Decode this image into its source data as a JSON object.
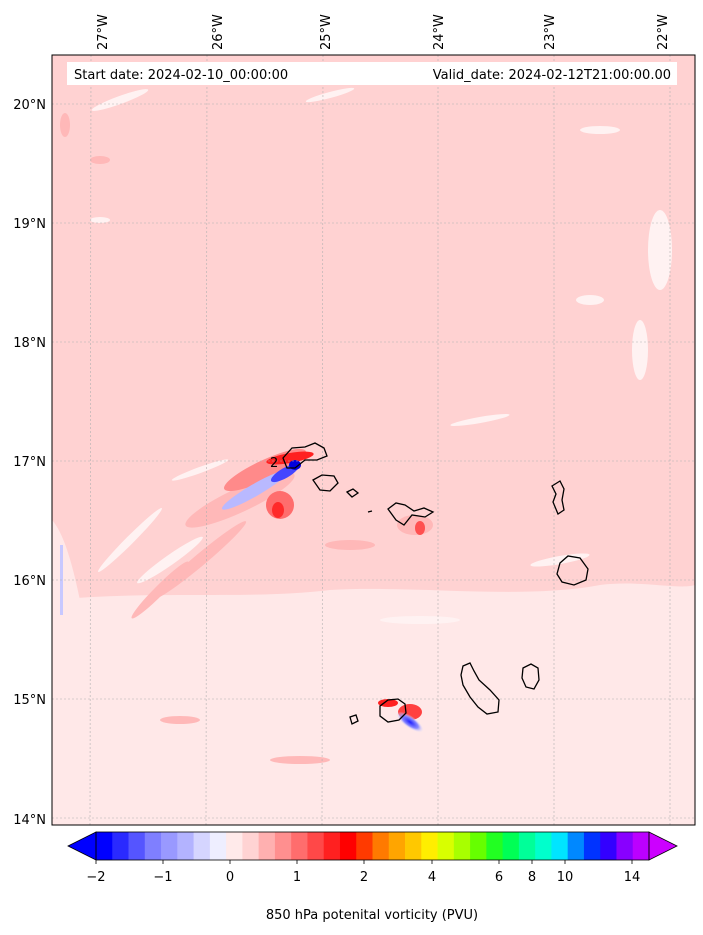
{
  "map": {
    "start_date": "Start date: 2024-02-10_00:00:00",
    "valid_date": "Valid_date: 2024-02-12T21:00:00.00",
    "lon_labels": [
      "27°W",
      "26°W",
      "25°W",
      "24°W",
      "23°W",
      "22°W"
    ],
    "lat_labels": [
      "20°N",
      "19°N",
      "18°N",
      "17°N",
      "16°N",
      "15°N",
      "14°N"
    ],
    "contour_label": "2"
  },
  "colorbar": {
    "label": "850 hPa potenital vorticity (PVU)",
    "ticks": [
      "−2",
      "−1",
      "0",
      "1",
      "2",
      "4",
      "6",
      "8",
      "10",
      "14"
    ],
    "colors": [
      "#0000ff",
      "#2a2aff",
      "#5555ff",
      "#7f7fff",
      "#9999ff",
      "#b3b3ff",
      "#d5d5ff",
      "#eeeeff",
      "#ffeaea",
      "#ffd3d3",
      "#ffb0b0",
      "#ff8f8f",
      "#ff6d6d",
      "#ff4848",
      "#ff2020",
      "#ff0000",
      "#ff3a00",
      "#ff7a00",
      "#ffa500",
      "#ffc800",
      "#ffee00",
      "#d8ff00",
      "#a8ff00",
      "#66ff00",
      "#22ff22",
      "#00ff55",
      "#00ff99",
      "#00ffcc",
      "#00e5ff",
      "#0088ff",
      "#0033ff",
      "#3300ff",
      "#8800ff",
      "#bb00ff"
    ],
    "extend_low_color": "#0000ff",
    "extend_high_color": "#cc00ff"
  },
  "colors": {
    "background_field": "#ffd2d2",
    "southern_field": "#ffe8e8",
    "light_patch": "#fff0f0",
    "land_outline": "#000000"
  }
}
